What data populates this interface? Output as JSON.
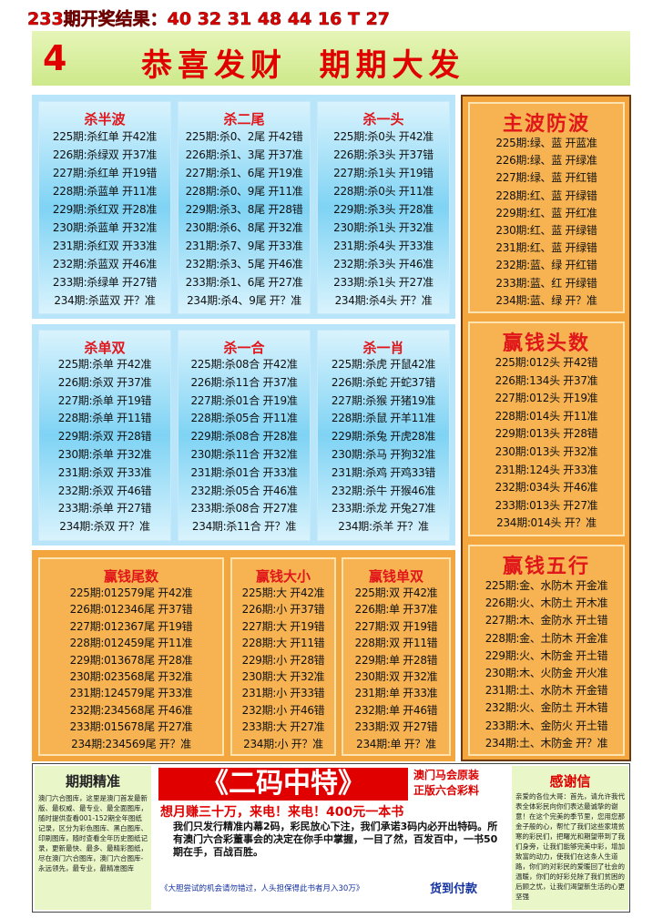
{
  "header": {
    "result": "233期开奖结果：40 32 31 48 44 16 T 27",
    "issue": "4",
    "title": "恭喜发财  期期大发"
  },
  "panels": [
    {
      "title": "杀半波",
      "rows": [
        "225期:杀红单 开42准",
        "226期:杀绿双 开37准",
        "227期:杀红单 开19错",
        "228期:杀蓝单 开11准",
        "229期:杀红双 开28准",
        "230期:杀蓝单 开32准",
        "231期:杀红双 开33准",
        "232期:杀蓝双 开46准",
        "233期:杀绿单 开27错",
        "234期:杀蓝双 开？准"
      ]
    },
    {
      "title": "杀二尾",
      "rows": [
        "225期:杀0、2尾 开42错",
        "226期:杀1、3尾 开37准",
        "227期:杀1、6尾 开19准",
        "228期:杀0、9尾 开11准",
        "229期:杀3、8尾 开28错",
        "230期:杀6、8尾 开32准",
        "231期:杀7、9尾 开33准",
        "232期:杀3、5尾 开46准",
        "233期:杀1、6尾 开27准",
        "234期:杀4、9尾 开？准"
      ]
    },
    {
      "title": "杀一头",
      "rows": [
        "225期:杀0头 开42准",
        "226期:杀3头 开37错",
        "227期:杀1头 开19错",
        "228期:杀0头 开11准",
        "229期:杀3头 开28准",
        "230期:杀1头 开32准",
        "231期:杀4头 开33准",
        "232期:杀3头 开46准",
        "233期:杀1头 开27准",
        "234期:杀4头 开？准"
      ]
    },
    {
      "title": "杀单双",
      "rows": [
        "225期:杀单 开42准",
        "226期:杀双 开37准",
        "227期:杀单 开19错",
        "228期:杀单 开11错",
        "229期:杀双 开28错",
        "230期:杀单 开32准",
        "231期:杀双 开33准",
        "232期:杀双 开46错",
        "233期:杀单 开27错",
        "234期:杀双 开？准"
      ]
    },
    {
      "title": "杀一合",
      "rows": [
        "225期:杀08合 开42准",
        "226期:杀11合 开37准",
        "227期:杀01合 开19准",
        "228期:杀05合 开11准",
        "229期:杀08合 开28准",
        "230期:杀11合 开32准",
        "231期:杀01合 开33准",
        "232期:杀05合 开46准",
        "233期:杀08合 开27准",
        "234期:杀11合 开？准"
      ]
    },
    {
      "title": "杀一肖",
      "rows": [
        "225期:杀虎 开鼠42准",
        "226期:杀蛇 开蛇37错",
        "227期:杀猴 开猪19准",
        "228期:杀鼠 开羊11准",
        "229期:杀兔 开虎28准",
        "230期:杀马 开狗32准",
        "231期:杀鸡 开鸡33错",
        "232期:杀牛 开猴46准",
        "233期:杀龙 开兔27准",
        "234期:杀羊 开？准"
      ]
    },
    {
      "title": "主波防波",
      "rows": [
        "225期:绿、蓝 开蓝准",
        "226期:绿、蓝 开绿准",
        "227期:绿、蓝 开红错",
        "228期:红、蓝 开绿错",
        "229期:红、蓝 开红准",
        "230期:红、蓝 开绿错",
        "231期:红、蓝 开绿错",
        "232期:蓝、绿 开红错",
        "233期:蓝、红 开绿错",
        "234期:蓝、绿 开？准"
      ]
    },
    {
      "title": "赢钱头数",
      "rows": [
        "225期:012头 开42错",
        "226期:134头 开37准",
        "227期:012头 开19准",
        "228期:014头 开11准",
        "229期:013头 开28错",
        "230期:013头 开32准",
        "231期:124头 开33准",
        "232期:034头 开46准",
        "233期:013头 开27准",
        "234期:014头 开？准"
      ]
    },
    {
      "title": "赢钱五行",
      "rows": [
        "225期:金、水防木 开金准",
        "226期:火、木防土 开木准",
        "227期:木、金防水 开土错",
        "228期:金、土防木 开金准",
        "229期:火、木防金 开土错",
        "230期:木、火防金 开火准",
        "231期:土、水防木 开金错",
        "232期:火、金防土 开木错",
        "233期:木、金防火 开土错",
        "234期:土、木防金 开？准"
      ]
    },
    {
      "title": "赢钱尾数",
      "rows": [
        "225期:012579尾 开42准",
        "226期:012346尾 开37错",
        "227期:012367尾 开19错",
        "228期:012459尾 开11准",
        "229期:013678尾 开28准",
        "230期:023568尾 开32准",
        "231期:124579尾 开33准",
        "232期:234568尾 开46准",
        "233期:015678尾 开27准",
        "234期:234569尾 开？准"
      ]
    },
    {
      "title": "赢钱大小",
      "rows": [
        "225期:大 开42准",
        "226期:小 开37错",
        "227期:大 开19错",
        "228期:大 开11错",
        "229期:小 开28错",
        "230期:大 开32准",
        "231期:小 开33错",
        "232期:小 开46错",
        "233期:大 开27准",
        "234期:小 开？准"
      ]
    },
    {
      "title": "赢钱单双",
      "rows": [
        "225期:双 开42准",
        "226期:单 开37准",
        "227期:双 开19错",
        "228期:双 开11错",
        "229期:单 开28错",
        "230期:双 开32准",
        "231期:单 开33准",
        "232期:单 开46错",
        "233期:双 开27错",
        "234期:单 开？准"
      ]
    }
  ],
  "footer": {
    "left_title": "期期精准",
    "left_text": "澳门六合图库，这里是澳门首发最新版、最权威、最专业、最全面图库，随时提供查看001-152期全年图纸记录，区分为彩色图库、黑白图库、印刷图库，随时查看全年历史图纸记录，更新最快、最多、最精彩图纸，尽在澳门六合图库，澳门六合图库-永远领先，最专业，最精准图库",
    "center_title": "《二码中特》",
    "center_tag1": "澳门马会原装",
    "center_tag2": "正版六合彩料",
    "center_slogan": "想月赚三十万，来电！来电！400元一本书",
    "center_text": "我们只发行精准内幕2码，彩民放心下注，我们承诺3码内必开出特码。所有澳门六合彩董事会的决定在你手中掌握，一目了然，百发百中，一书50期在手，百战百胜。",
    "center_note": "《大胆尝试的机会请勿错过，人头担保得此书者月入30万》",
    "center_pay": "货到付款",
    "right_title": "感谢信",
    "right_text": "亲爱的各位大哥：首先，请允许我代表全体彩民向你们表达最诚挚的谢意！在这个完美的季节里，您用您那金子般的心，帮忙了我们这些家境贫寒的彩民们，把曙光和期望带到了我们身旁，让我们能够完美中彩，增加致富的动力，使我们在这条人生道路，你们的对彩民的爱暖回了社会的温暖，你们的好彩兑除了我们贫困的后顾之忧，让我们渴望新生活的心更坚强"
  }
}
